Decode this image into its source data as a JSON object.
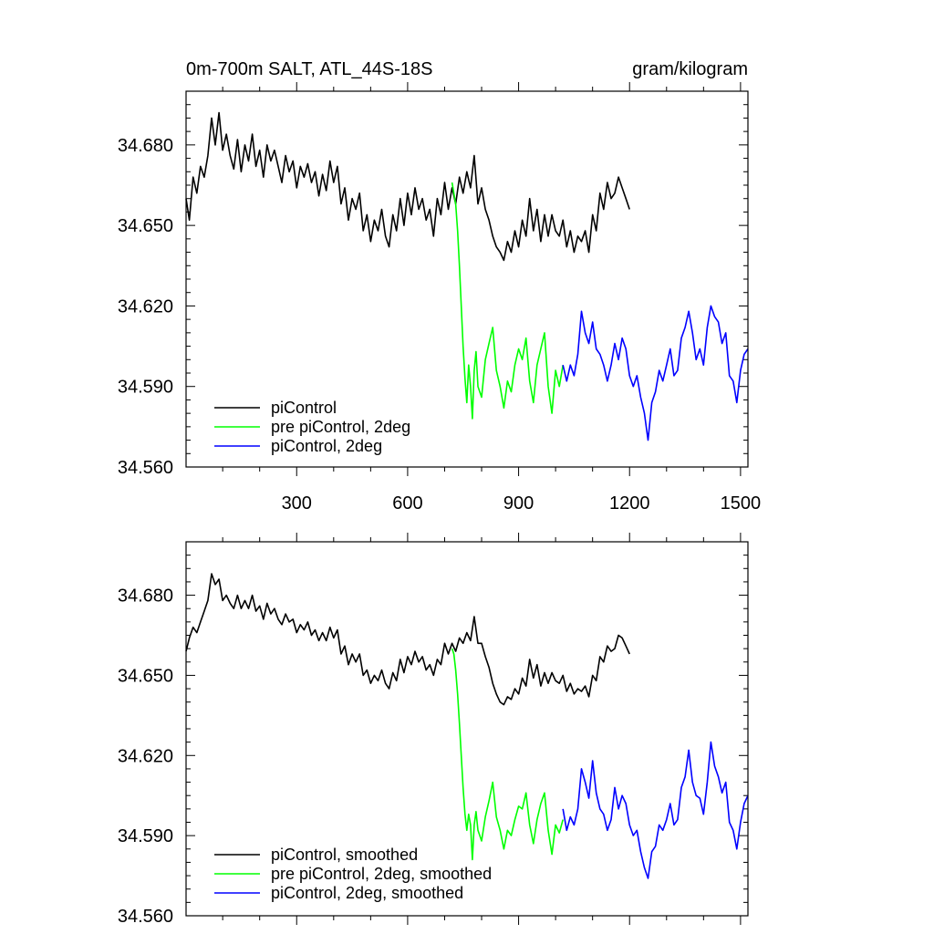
{
  "figure": {
    "title_left": "0m-700m SALT, ATL_44S-18S",
    "title_right": "gram/kilogram"
  },
  "chart_data": [
    {
      "type": "line",
      "title": "0m-700m SALT, ATL_44S-18S",
      "units": "gram/kilogram",
      "xlim": [
        1,
        1520
      ],
      "ylim": [
        34.56,
        34.7
      ],
      "x_ticks": [
        300,
        600,
        900,
        1200,
        1500
      ],
      "x_tick_labels": [
        "300",
        "600",
        "900",
        "1200",
        "1500"
      ],
      "y_ticks": [
        34.56,
        34.59,
        34.62,
        34.65,
        34.68
      ],
      "y_tick_labels": [
        "34.560",
        "34.590",
        "34.620",
        "34.650",
        "34.680"
      ],
      "legend_position": "bottom-left",
      "series": [
        {
          "name": "piControl",
          "color": "#000000",
          "x": [
            1,
            10,
            20,
            30,
            40,
            50,
            60,
            70,
            80,
            90,
            100,
            110,
            120,
            130,
            140,
            150,
            160,
            170,
            180,
            190,
            200,
            210,
            220,
            230,
            240,
            250,
            260,
            270,
            280,
            290,
            300,
            310,
            320,
            330,
            340,
            350,
            360,
            370,
            380,
            390,
            400,
            410,
            420,
            430,
            440,
            450,
            460,
            470,
            480,
            490,
            500,
            510,
            520,
            530,
            540,
            550,
            560,
            570,
            580,
            590,
            600,
            610,
            620,
            630,
            640,
            650,
            660,
            670,
            680,
            690,
            700,
            710,
            720,
            730,
            740,
            750,
            760,
            770,
            780,
            790,
            800,
            810,
            820,
            830,
            840,
            850,
            860,
            870,
            880,
            890,
            900,
            910,
            920,
            930,
            940,
            950,
            960,
            970,
            980,
            990,
            1000,
            1010,
            1020,
            1030,
            1040,
            1050,
            1060,
            1070,
            1080,
            1090,
            1100,
            1110,
            1120,
            1130,
            1140,
            1150,
            1160,
            1170,
            1180,
            1190,
            1200
          ],
          "values": [
            34.66,
            34.652,
            34.668,
            34.662,
            34.672,
            34.668,
            34.676,
            34.69,
            34.68,
            34.692,
            34.678,
            34.684,
            34.676,
            34.671,
            34.682,
            34.67,
            34.68,
            34.674,
            34.684,
            34.672,
            34.678,
            34.668,
            34.68,
            34.674,
            34.678,
            34.672,
            34.666,
            34.676,
            34.67,
            34.674,
            34.664,
            34.672,
            34.668,
            34.673,
            34.666,
            34.67,
            34.661,
            34.669,
            34.663,
            34.674,
            34.666,
            34.672,
            34.658,
            34.664,
            34.652,
            34.66,
            34.656,
            34.662,
            34.648,
            34.654,
            34.644,
            34.652,
            34.648,
            34.656,
            34.646,
            34.642,
            34.654,
            34.648,
            34.66,
            34.65,
            34.662,
            34.654,
            34.664,
            34.656,
            34.66,
            34.652,
            34.656,
            34.646,
            34.66,
            34.654,
            34.666,
            34.656,
            34.664,
            34.658,
            34.668,
            34.662,
            34.67,
            34.664,
            34.676,
            34.658,
            34.664,
            34.656,
            34.652,
            34.646,
            34.642,
            34.64,
            34.637,
            34.644,
            34.64,
            34.648,
            34.642,
            34.652,
            34.646,
            34.66,
            34.648,
            34.656,
            34.644,
            34.654,
            34.646,
            34.654,
            34.648,
            34.646,
            34.652,
            34.642,
            34.648,
            34.64,
            34.646,
            34.644,
            34.648,
            34.64,
            34.654,
            34.648,
            34.662,
            34.656,
            34.666,
            34.66,
            34.662,
            34.668,
            34.664,
            34.66,
            34.656
          ]
        },
        {
          "name": "pre piControl, 2deg",
          "color": "#00ff00",
          "x": [
            720,
            725,
            730,
            735,
            740,
            745,
            750,
            755,
            760,
            765,
            770,
            775,
            780,
            785,
            790,
            800,
            810,
            820,
            830,
            840,
            850,
            860,
            870,
            880,
            890,
            900,
            910,
            920,
            930,
            940,
            950,
            960,
            970,
            980,
            990,
            1000,
            1010,
            1020
          ],
          "values": [
            34.666,
            34.662,
            34.658,
            34.648,
            34.635,
            34.62,
            34.605,
            34.593,
            34.584,
            34.598,
            34.59,
            34.578,
            34.596,
            34.603,
            34.59,
            34.586,
            34.6,
            34.606,
            34.612,
            34.596,
            34.59,
            34.582,
            34.592,
            34.588,
            34.598,
            34.604,
            34.6,
            34.608,
            34.592,
            34.584,
            34.598,
            34.604,
            34.61,
            34.59,
            34.58,
            34.596,
            34.59,
            34.598
          ]
        },
        {
          "name": "piControl, 2deg",
          "color": "#0000ff",
          "x": [
            1020,
            1030,
            1040,
            1050,
            1060,
            1070,
            1080,
            1090,
            1100,
            1110,
            1120,
            1130,
            1140,
            1150,
            1160,
            1170,
            1180,
            1190,
            1200,
            1210,
            1220,
            1230,
            1240,
            1250,
            1260,
            1270,
            1280,
            1290,
            1300,
            1310,
            1320,
            1330,
            1340,
            1350,
            1360,
            1370,
            1380,
            1390,
            1400,
            1410,
            1420,
            1430,
            1440,
            1450,
            1460,
            1470,
            1480,
            1490,
            1500,
            1510,
            1520
          ],
          "values": [
            34.598,
            34.592,
            34.598,
            34.594,
            34.602,
            34.618,
            34.61,
            34.606,
            34.614,
            34.604,
            34.602,
            34.598,
            34.592,
            34.598,
            34.606,
            34.6,
            34.608,
            34.604,
            34.594,
            34.59,
            34.594,
            34.586,
            34.58,
            34.57,
            34.584,
            34.588,
            34.596,
            34.592,
            34.598,
            34.604,
            34.594,
            34.596,
            34.608,
            34.612,
            34.618,
            34.61,
            34.6,
            34.604,
            34.598,
            34.612,
            34.62,
            34.616,
            34.614,
            34.606,
            34.61,
            34.594,
            34.592,
            34.584,
            34.596,
            34.602,
            34.604
          ]
        }
      ]
    },
    {
      "type": "line",
      "xlim": [
        1,
        1520
      ],
      "ylim": [
        34.56,
        34.7
      ],
      "x_ticks": [
        300,
        600,
        900,
        1200,
        1500
      ],
      "y_ticks": [
        34.56,
        34.59,
        34.62,
        34.65,
        34.68
      ],
      "y_tick_labels": [
        "34.560",
        "34.590",
        "34.620",
        "34.650",
        "34.680"
      ],
      "legend_position": "bottom-left",
      "series": [
        {
          "name": "piControl, smoothed",
          "color": "#000000",
          "x": [
            1,
            10,
            20,
            30,
            40,
            50,
            60,
            70,
            80,
            90,
            100,
            110,
            120,
            130,
            140,
            150,
            160,
            170,
            180,
            190,
            200,
            210,
            220,
            230,
            240,
            250,
            260,
            270,
            280,
            290,
            300,
            310,
            320,
            330,
            340,
            350,
            360,
            370,
            380,
            390,
            400,
            410,
            420,
            430,
            440,
            450,
            460,
            470,
            480,
            490,
            500,
            510,
            520,
            530,
            540,
            550,
            560,
            570,
            580,
            590,
            600,
            610,
            620,
            630,
            640,
            650,
            660,
            670,
            680,
            690,
            700,
            710,
            720,
            730,
            740,
            750,
            760,
            770,
            780,
            790,
            800,
            810,
            820,
            830,
            840,
            850,
            860,
            870,
            880,
            890,
            900,
            910,
            920,
            930,
            940,
            950,
            960,
            970,
            980,
            990,
            1000,
            1010,
            1020,
            1030,
            1040,
            1050,
            1060,
            1070,
            1080,
            1090,
            1100,
            1110,
            1120,
            1130,
            1140,
            1150,
            1160,
            1170,
            1180,
            1190,
            1200
          ],
          "values": [
            34.659,
            34.664,
            34.668,
            34.666,
            34.67,
            34.674,
            34.678,
            34.688,
            34.684,
            34.686,
            34.678,
            34.68,
            34.677,
            34.675,
            34.68,
            34.675,
            34.678,
            34.675,
            34.68,
            34.674,
            34.676,
            34.671,
            34.677,
            34.673,
            34.675,
            34.671,
            34.669,
            34.673,
            34.67,
            34.671,
            34.666,
            34.669,
            34.667,
            34.67,
            34.665,
            34.667,
            34.663,
            34.666,
            34.663,
            34.668,
            34.664,
            34.667,
            34.658,
            34.661,
            34.654,
            34.658,
            34.655,
            34.658,
            34.65,
            34.652,
            34.647,
            34.65,
            34.648,
            34.652,
            34.647,
            34.645,
            34.651,
            34.648,
            34.656,
            34.651,
            34.657,
            34.654,
            34.659,
            34.655,
            34.657,
            34.652,
            34.654,
            34.65,
            34.656,
            34.654,
            34.662,
            34.658,
            34.662,
            34.659,
            34.664,
            34.662,
            34.666,
            34.663,
            34.672,
            34.662,
            34.662,
            34.657,
            34.653,
            34.647,
            34.643,
            34.64,
            34.639,
            34.642,
            34.641,
            34.645,
            34.643,
            34.649,
            34.646,
            34.656,
            34.649,
            34.654,
            34.646,
            34.651,
            34.647,
            34.651,
            34.648,
            34.647,
            34.65,
            34.644,
            34.647,
            34.643,
            34.645,
            34.644,
            34.646,
            34.642,
            34.65,
            34.648,
            34.657,
            34.655,
            34.661,
            34.659,
            34.66,
            34.665,
            34.664,
            34.661,
            34.658
          ]
        },
        {
          "name": "pre piControl, 2deg, smoothed",
          "color": "#00ff00",
          "x": [
            720,
            725,
            730,
            735,
            740,
            745,
            750,
            755,
            760,
            765,
            770,
            775,
            780,
            785,
            790,
            800,
            810,
            820,
            830,
            840,
            850,
            860,
            870,
            880,
            890,
            900,
            910,
            920,
            930,
            940,
            950,
            960,
            970,
            980,
            990,
            1000,
            1010,
            1020
          ],
          "values": [
            34.66,
            34.658,
            34.652,
            34.643,
            34.632,
            34.62,
            34.608,
            34.598,
            34.592,
            34.598,
            34.594,
            34.581,
            34.594,
            34.599,
            34.592,
            34.588,
            34.597,
            34.603,
            34.61,
            34.597,
            34.592,
            34.585,
            34.592,
            34.59,
            34.596,
            34.601,
            34.6,
            34.606,
            34.594,
            34.587,
            34.596,
            34.602,
            34.606,
            34.592,
            34.583,
            34.594,
            34.591,
            34.596
          ]
        },
        {
          "name": "piControl, 2deg, smoothed",
          "color": "#0000ff",
          "x": [
            1020,
            1030,
            1040,
            1050,
            1060,
            1070,
            1080,
            1090,
            1100,
            1110,
            1120,
            1130,
            1140,
            1150,
            1160,
            1170,
            1180,
            1190,
            1200,
            1210,
            1220,
            1230,
            1240,
            1250,
            1260,
            1270,
            1280,
            1290,
            1300,
            1310,
            1320,
            1330,
            1340,
            1350,
            1360,
            1370,
            1380,
            1390,
            1400,
            1410,
            1420,
            1430,
            1440,
            1450,
            1460,
            1470,
            1480,
            1490,
            1500,
            1510,
            1520
          ],
          "values": [
            34.6,
            34.592,
            34.597,
            34.594,
            34.6,
            34.615,
            34.61,
            34.604,
            34.618,
            34.606,
            34.6,
            34.598,
            34.592,
            34.596,
            34.608,
            34.6,
            34.605,
            34.602,
            34.594,
            34.59,
            34.592,
            34.584,
            34.578,
            34.574,
            34.584,
            34.586,
            34.594,
            34.592,
            34.596,
            34.602,
            34.594,
            34.596,
            34.608,
            34.612,
            34.622,
            34.61,
            34.605,
            34.604,
            34.598,
            34.61,
            34.625,
            34.616,
            34.612,
            34.606,
            34.61,
            34.595,
            34.592,
            34.585,
            34.595,
            34.602,
            34.605
          ]
        }
      ]
    }
  ]
}
